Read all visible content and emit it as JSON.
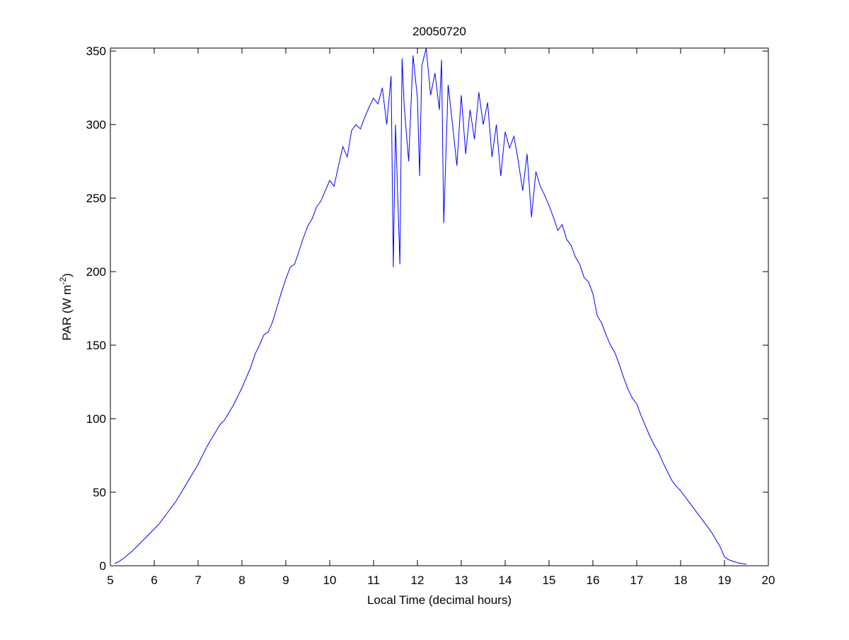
{
  "chart_data": {
    "type": "line",
    "title": "20050720",
    "x_label": "Local Time (decimal hours)",
    "y_label": [
      "PAR (W m",
      "-2",
      ")"
    ],
    "xlim": [
      5,
      20
    ],
    "ylim": [
      0,
      352
    ],
    "xticks": [
      5,
      6,
      7,
      8,
      9,
      10,
      11,
      12,
      13,
      14,
      15,
      16,
      17,
      18,
      19,
      20
    ],
    "yticks": [
      0,
      50,
      100,
      150,
      200,
      250,
      300,
      350
    ],
    "series": [
      {
        "color": "#0000ff",
        "x": [
          5.1,
          5.2,
          5.3,
          5.4,
          5.5,
          5.6,
          5.7,
          5.8,
          5.9,
          6.0,
          6.1,
          6.2,
          6.3,
          6.4,
          6.5,
          6.6,
          6.7,
          6.8,
          6.9,
          7.0,
          7.1,
          7.2,
          7.3,
          7.4,
          7.5,
          7.6,
          7.7,
          7.8,
          7.9,
          8.0,
          8.1,
          8.2,
          8.3,
          8.4,
          8.5,
          8.6,
          8.7,
          8.8,
          8.9,
          9.0,
          9.1,
          9.2,
          9.3,
          9.4,
          9.5,
          9.6,
          9.7,
          9.8,
          9.9,
          10.0,
          10.1,
          10.2,
          10.3,
          10.4,
          10.5,
          10.6,
          10.7,
          10.8,
          10.9,
          11.0,
          11.1,
          11.2,
          11.3,
          11.4,
          11.45,
          11.5,
          11.6,
          11.65,
          11.7,
          11.8,
          11.9,
          12.0,
          12.05,
          12.1,
          12.2,
          12.3,
          12.4,
          12.5,
          12.55,
          12.6,
          12.7,
          12.8,
          12.9,
          13.0,
          13.1,
          13.2,
          13.3,
          13.4,
          13.5,
          13.6,
          13.7,
          13.8,
          13.9,
          14.0,
          14.1,
          14.2,
          14.3,
          14.4,
          14.5,
          14.6,
          14.7,
          14.8,
          14.9,
          15.0,
          15.1,
          15.2,
          15.3,
          15.4,
          15.5,
          15.6,
          15.7,
          15.8,
          15.9,
          16.0,
          16.1,
          16.2,
          16.3,
          16.4,
          16.5,
          16.6,
          16.7,
          16.8,
          16.9,
          17.0,
          17.1,
          17.2,
          17.3,
          17.4,
          17.5,
          17.6,
          17.7,
          17.8,
          17.9,
          18.0,
          18.1,
          18.2,
          18.3,
          18.4,
          18.5,
          18.6,
          18.7,
          18.8,
          18.9,
          19.0,
          19.1,
          19.2,
          19.3,
          19.4,
          19.5
        ],
        "values": [
          1.5,
          3,
          5,
          7.5,
          10,
          13,
          16,
          19,
          22,
          25,
          28,
          32,
          36,
          40,
          44,
          49,
          54,
          59,
          64,
          69,
          75,
          81,
          86,
          91,
          96,
          99,
          104,
          109,
          115,
          121,
          128,
          135,
          144,
          150,
          157,
          159,
          166,
          176,
          186,
          195,
          203,
          205,
          214,
          223,
          231,
          236,
          244,
          248,
          255,
          262,
          258,
          272,
          285,
          278,
          296,
          300,
          297,
          305,
          312,
          318,
          314,
          325,
          300,
          333,
          203,
          300,
          205,
          345,
          312,
          275,
          347,
          318,
          265,
          340,
          352,
          320,
          335,
          310,
          344,
          233,
          327,
          300,
          272,
          320,
          280,
          310,
          290,
          322,
          300,
          315,
          278,
          300,
          265,
          295,
          284,
          292,
          275,
          255,
          280,
          237,
          268,
          258,
          252,
          245,
          237,
          228,
          232,
          222,
          218,
          210,
          205,
          196,
          193,
          185,
          170,
          165,
          157,
          150,
          145,
          137,
          128,
          120,
          114,
          110,
          102,
          95,
          88,
          82,
          77,
          70,
          64,
          58,
          54,
          51,
          47,
          43,
          39,
          35,
          31,
          27,
          23,
          18,
          13,
          6,
          4,
          3,
          2,
          1.5,
          1
        ]
      }
    ]
  }
}
